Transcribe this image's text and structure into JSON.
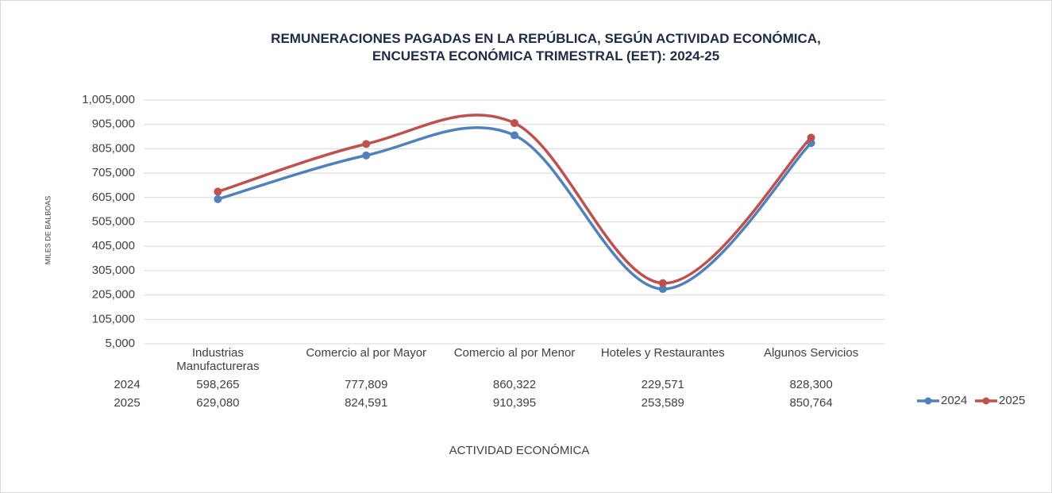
{
  "chart_data": {
    "type": "line",
    "title": "REMUNERACIONES  PAGADAS  EN LA REPÚBLICA,  SEGÚN ACTIVIDAD ECONÓMICA,\nENCUESTA ECONÓMICA TRIMESTRAL (EET):  2024-25",
    "y_label": "MILES DE BALBOAS",
    "x_label": "ACTIVIDAD ECONÓMICA",
    "categories": [
      "Industrias\nManufactureras",
      "Comercio al por Mayor",
      "Comercio al por Menor",
      "Hoteles y Restaurantes",
      "Algunos Servicios"
    ],
    "series": [
      {
        "name": "2024",
        "color": "#4f81bd",
        "values": [
          598265,
          777809,
          860322,
          229571,
          828300
        ],
        "value_labels": [
          "598,265",
          "777,809",
          "860,322",
          "229,571",
          "828,300"
        ]
      },
      {
        "name": "2025",
        "color": "#c0504d",
        "values": [
          629080,
          824591,
          910395,
          253589,
          850764
        ],
        "value_labels": [
          "629,080",
          "824,591",
          "910,395",
          "253,589",
          "850,764"
        ]
      }
    ],
    "ylim": [
      5000,
      1005000
    ],
    "yticks": [
      {
        "value": 5000,
        "label": "5,000"
      },
      {
        "value": 105000,
        "label": "105,000"
      },
      {
        "value": 205000,
        "label": "205,000"
      },
      {
        "value": 305000,
        "label": "305,000"
      },
      {
        "value": 405000,
        "label": "405,000"
      },
      {
        "value": 505000,
        "label": "505,000"
      },
      {
        "value": 605000,
        "label": "605,000"
      },
      {
        "value": 705000,
        "label": "705,000"
      },
      {
        "value": 805000,
        "label": "805,000"
      },
      {
        "value": 905000,
        "label": "905,000"
      },
      {
        "value": 1005000,
        "label": "1,005,000"
      }
    ],
    "grid": true,
    "smooth": true,
    "legend": "right"
  }
}
